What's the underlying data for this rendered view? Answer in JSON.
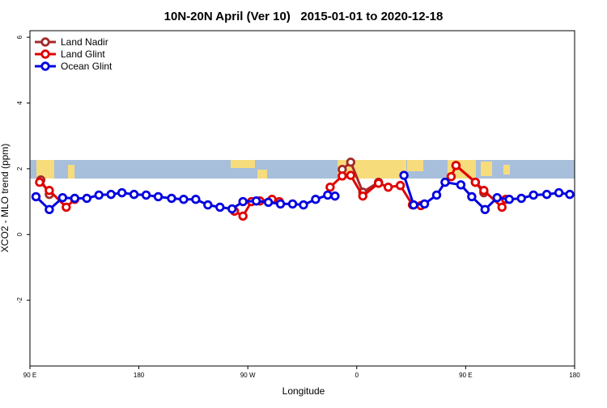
{
  "chart_data": {
    "type": "line",
    "title": "10N-20N April (Ver 10)   2015-01-01 to 2020-12-18",
    "x_label": "Longitude",
    "y_label": "XCO2 - MLO trend (ppm)",
    "xlim": [
      90,
      540
    ],
    "ylim": [
      -4,
      6.2
    ],
    "xticks": [
      {
        "value": 90,
        "label": "90 E"
      },
      180,
      {
        "value": 270,
        "label": "90 W"
      },
      {
        "value": 360,
        "label": "0"
      },
      {
        "value": 450,
        "label": "90 E"
      },
      {
        "value": 540,
        "label": "180"
      }
    ],
    "yticks": [
      -2,
      0,
      2,
      4,
      6
    ],
    "legend": "top-left",
    "series": [
      {
        "name": "Land Nadir",
        "color": "#a52a2a",
        "x": [
          99,
          106,
          null,
          348,
          355,
          365,
          378,
          null,
          442,
          458,
          465
        ],
        "values": [
          1.66,
          1.22,
          null,
          1.98,
          2.2,
          1.29,
          1.59,
          null,
          2.1,
          1.59,
          1.27
        ]
      },
      {
        "name": "Land Glint",
        "color": "#e00000",
        "x": [
          98,
          106,
          120,
          127,
          null,
          259,
          266,
          273,
          280,
          290,
          296,
          null,
          338,
          348,
          355,
          365,
          378,
          386,
          396,
          406,
          413,
          null,
          438,
          442,
          458,
          465,
          480,
          483
        ],
        "values": [
          1.59,
          1.34,
          0.83,
          1.07,
          null,
          0.71,
          0.56,
          1.0,
          1.02,
          1.07,
          1.0,
          null,
          1.44,
          1.78,
          1.8,
          1.17,
          1.56,
          1.44,
          1.49,
          0.9,
          0.88,
          null,
          1.76,
          2.1,
          1.59,
          1.34,
          0.83,
          1.07
        ]
      },
      {
        "name": "Ocean Glint",
        "color": "#0000e0",
        "x": [
          95,
          106,
          117,
          127,
          137,
          147,
          157,
          166,
          176,
          186,
          196,
          207,
          217,
          227,
          237,
          247,
          257,
          266,
          277,
          287,
          297,
          307,
          316,
          326,
          336,
          342,
          null,
          399,
          407,
          416,
          426,
          433,
          446,
          455,
          466,
          476,
          486,
          496,
          506,
          517,
          527,
          536
        ],
        "values": [
          1.15,
          0.76,
          1.12,
          1.1,
          1.1,
          1.2,
          1.22,
          1.27,
          1.22,
          1.2,
          1.15,
          1.1,
          1.07,
          1.07,
          0.9,
          0.83,
          0.78,
          1.0,
          1.02,
          0.98,
          0.93,
          0.93,
          0.9,
          1.07,
          1.2,
          1.17,
          null,
          1.8,
          0.9,
          0.93,
          1.2,
          1.59,
          1.51,
          1.15,
          0.76,
          1.12,
          1.07,
          1.1,
          1.2,
          1.22,
          1.27,
          1.22
        ]
      }
    ]
  }
}
